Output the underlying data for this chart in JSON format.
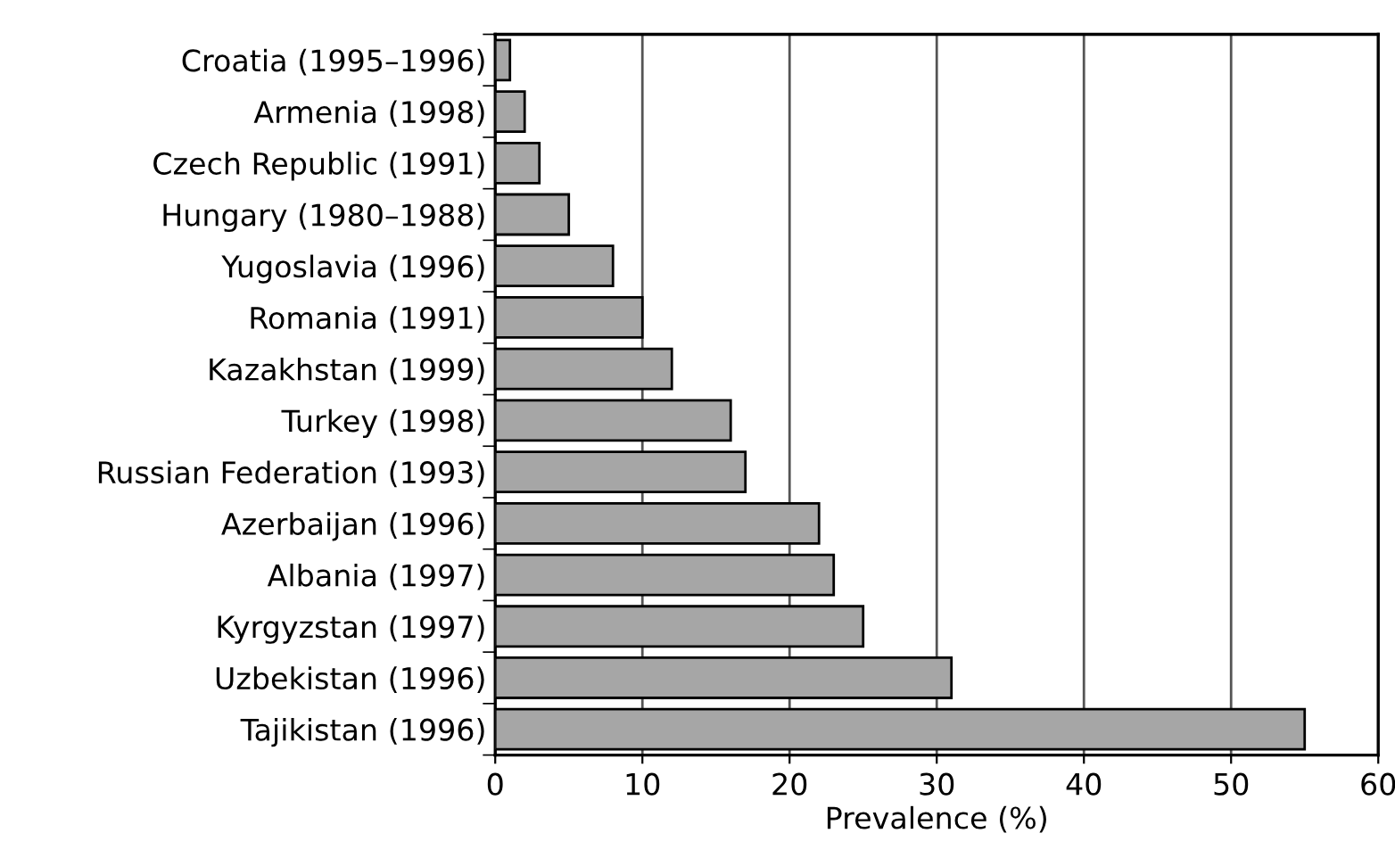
{
  "chart_data": {
    "type": "bar",
    "orientation": "horizontal",
    "xlabel": "Prevalence (%)",
    "categories": [
      "Croatia (1995–1996)",
      "Armenia (1998)",
      "Czech Republic (1991)",
      "Hungary (1980–1988)",
      "Yugoslavia (1996)",
      "Romania (1991)",
      "Kazakhstan (1999)",
      "Turkey (1998)",
      "Russian Federation (1993)",
      "Azerbaijan (1996)",
      "Albania (1997)",
      "Kyrgyzstan (1997)",
      "Uzbekistan (1996)",
      "Tajikistan (1996)"
    ],
    "values": [
      1,
      2,
      3,
      5,
      8,
      10,
      12,
      16,
      17,
      22,
      23,
      25,
      31,
      55
    ],
    "color": "#a6a6a6",
    "xlim": [
      0,
      60
    ],
    "xticks": [
      0,
      10,
      20,
      30,
      40,
      50,
      60
    ],
    "grid": "x"
  }
}
